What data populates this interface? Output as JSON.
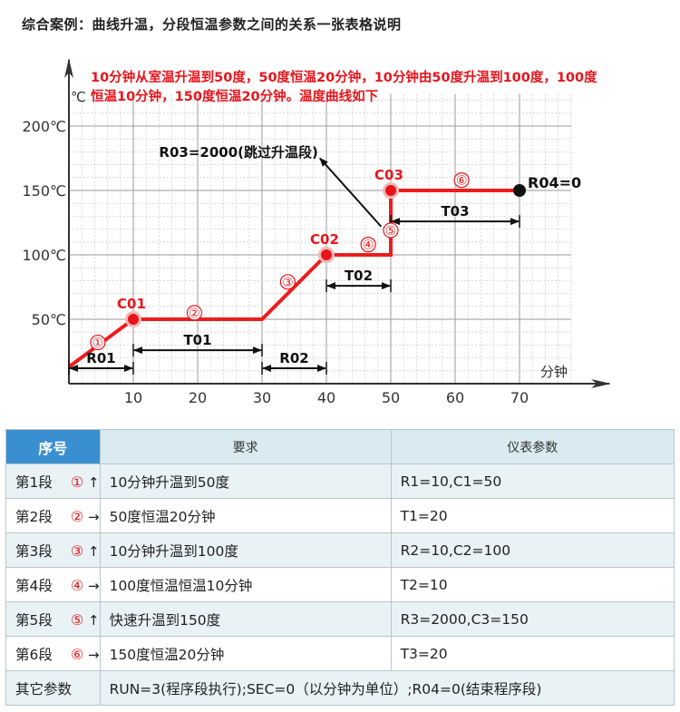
{
  "page": {
    "title": "综合案例：曲线升温，分段恒温参数之间的关系一张表格说明"
  },
  "note": "10分钟从室温升温到50度，50度恒温20分钟，10分钟由50度升温到100度，100度恒温10分钟，150度恒温20分钟。温度曲线如下",
  "colors": {
    "curve": "#ee1c1c",
    "accent": "#e8141b",
    "header_blue": "#3a8fd0",
    "header_light": "#d9ebf1"
  },
  "chart_data": {
    "type": "line",
    "xlabel": "分钟",
    "ylabel": "℃",
    "x_ticks": [
      10,
      20,
      30,
      40,
      50,
      60,
      70
    ],
    "x_tick_labels": [
      "10",
      "20",
      "30",
      "40",
      "50",
      "60",
      "70"
    ],
    "y_ticks": [
      50,
      100,
      150,
      200
    ],
    "y_tick_labels": [
      "50℃",
      "100℃",
      "150℃",
      "200℃"
    ],
    "xlim": [
      0,
      80
    ],
    "ylim": [
      0,
      225
    ],
    "grid": true,
    "series": [
      {
        "points": [
          [
            0,
            13
          ],
          [
            10,
            50
          ],
          [
            30,
            50
          ],
          [
            40,
            100
          ],
          [
            50,
            100
          ],
          [
            50,
            150
          ],
          [
            70,
            150
          ]
        ]
      }
    ],
    "markers": [
      {
        "label": "C01",
        "x": 10,
        "y": 50
      },
      {
        "label": "C02",
        "x": 40,
        "y": 100
      },
      {
        "label": "C03",
        "x": 50,
        "y": 150
      },
      {
        "label": "R04=0",
        "x": 70,
        "y": 150,
        "end": true
      }
    ],
    "segment_labels": [
      {
        "label": "①",
        "x": 4.5,
        "y": 32
      },
      {
        "label": "②",
        "x": 19.5,
        "y": 55
      },
      {
        "label": "③",
        "x": 34,
        "y": 79
      },
      {
        "label": "④",
        "x": 46.5,
        "y": 108
      },
      {
        "label": "⑤",
        "x": 50,
        "y": 119
      },
      {
        "label": "⑥",
        "x": 61,
        "y": 158
      }
    ],
    "spans": [
      {
        "label": "R01",
        "x1": 0,
        "x2": 10,
        "y": 12
      },
      {
        "label": "T01",
        "x1": 10,
        "x2": 30,
        "y": 26
      },
      {
        "label": "R02",
        "x1": 30,
        "x2": 40,
        "y": 12
      },
      {
        "label": "T02",
        "x1": 40,
        "x2": 50,
        "y": 76
      },
      {
        "label": "T03",
        "x1": 50,
        "x2": 70,
        "y": 126
      }
    ],
    "annotation": {
      "label": "R03=2000(跳过升温段)",
      "from": [
        48.5,
        122
      ],
      "to": [
        39,
        175
      ],
      "text_x": 14,
      "text_y": 176
    }
  },
  "table": {
    "headers": [
      "序号",
      "要求",
      "仪表参数"
    ],
    "rows": [
      {
        "seg": "第1段",
        "circle": "①",
        "arrow": "↑",
        "req": "10分钟升温到50度",
        "param": "R1=10,C1=50"
      },
      {
        "seg": "第2段",
        "circle": "②",
        "arrow": "→",
        "req": "50度恒温20分钟",
        "param": "T1=20"
      },
      {
        "seg": "第3段",
        "circle": "③",
        "arrow": "↑",
        "req": "10分钟升温到100度",
        "param": "R2=10,C2=100"
      },
      {
        "seg": "第4段",
        "circle": "④",
        "arrow": "→",
        "req": "100度恒温恒温10分钟",
        "param": "T2=10"
      },
      {
        "seg": "第5段",
        "circle": "⑤",
        "arrow": "↑",
        "req": "快速升温到150度",
        "param": "R3=2000,C3=150"
      },
      {
        "seg": "第6段",
        "circle": "⑥",
        "arrow": "→",
        "req": "150度恒温20分钟",
        "param": "T3=20"
      }
    ],
    "footer": {
      "label": "其它参数",
      "text": "RUN=3(程序段执行);SEC=0（以分钟为单位）;R04=0(结束程序段)"
    }
  }
}
